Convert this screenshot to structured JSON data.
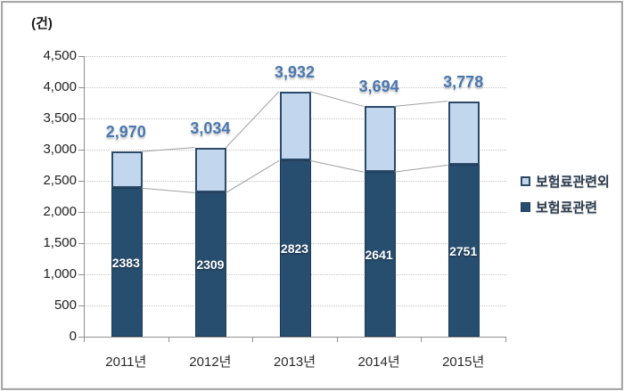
{
  "frame": {
    "unit_label": "(건)"
  },
  "legend": {
    "items": [
      {
        "label": "보험료관련외",
        "swatch_fill": "#c2d6ee",
        "swatch_border": "#2b4a68"
      },
      {
        "label": "보험료관련",
        "swatch_fill": "#284e6f",
        "swatch_border": "#1d3a55"
      }
    ]
  },
  "chart_data": {
    "type": "bar",
    "subtype": "stacked-column",
    "unit_label": "(건)",
    "categories": [
      "2011년",
      "2012년",
      "2013년",
      "2014년",
      "2015년"
    ],
    "series": [
      {
        "name": "보험료관련",
        "values": [
          2383,
          2309,
          2823,
          2641,
          2751
        ],
        "value_labels": [
          "2383",
          "2309",
          "2823",
          "2641",
          "2751"
        ],
        "color": "#284e6f"
      },
      {
        "name": "보험료관련외",
        "values": [
          587,
          725,
          1109,
          1053,
          1027
        ],
        "color": "#c2d6ee"
      }
    ],
    "totals": [
      2970,
      3034,
      3932,
      3694,
      3778
    ],
    "total_labels": [
      "2,970",
      "3,034",
      "3,932",
      "3,694",
      "3,778"
    ],
    "ylim": [
      0,
      4500
    ],
    "ytick_step": 500,
    "ytick_labels": [
      "0",
      "500",
      "1,000",
      "1,500",
      "2,000",
      "2,500",
      "3,000",
      "3,500",
      "4,000",
      "4,500"
    ],
    "xlabel": "",
    "ylabel": "",
    "grid": "horizontal-dotted",
    "legend_position": "right",
    "series_lines": true,
    "colors": {
      "bar_dark": "#284e6f",
      "bar_light": "#c2d6ee",
      "bar_border": "#2b4a68",
      "total_label": "#4a78b0",
      "inside_label": "#ffffff",
      "series_line": "#a0a0a0",
      "gridline": "#c4c4c4",
      "axis": "#8f8f8f"
    }
  }
}
